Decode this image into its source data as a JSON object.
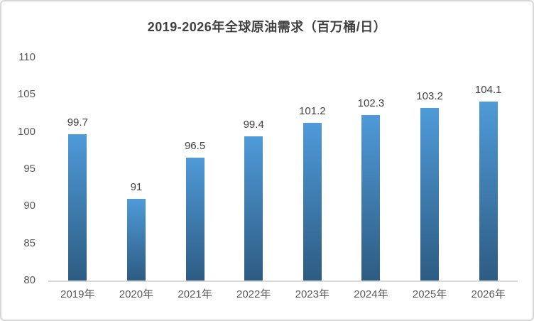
{
  "chart_data": {
    "type": "bar",
    "title": "2019-2026年全球原油需求（百万桶/日）",
    "categories": [
      "2019年",
      "2020年",
      "2021年",
      "2022年",
      "2023年",
      "2024年",
      "2025年",
      "2026年"
    ],
    "values": [
      99.7,
      91,
      96.5,
      99.4,
      101.2,
      102.3,
      103.2,
      104.1
    ],
    "data_labels": [
      "99.7",
      "91",
      "96.5",
      "99.4",
      "101.2",
      "102.3",
      "103.2",
      "104.1"
    ],
    "xlabel": "",
    "ylabel": "",
    "ylim": [
      80,
      110
    ],
    "yticks": [
      80,
      85,
      90,
      95,
      100,
      105,
      110
    ],
    "grid": false,
    "legend": false,
    "colors": {
      "bar_gradient_top": "#4F9AD9",
      "bar_gradient_bottom": "#2D5C82",
      "axis_line": "#D9D9D9",
      "title_text": "#404040",
      "tick_text": "#595959",
      "data_label_text": "#404040",
      "background": "#FFFFFF",
      "border": "#D7D7D7"
    }
  }
}
